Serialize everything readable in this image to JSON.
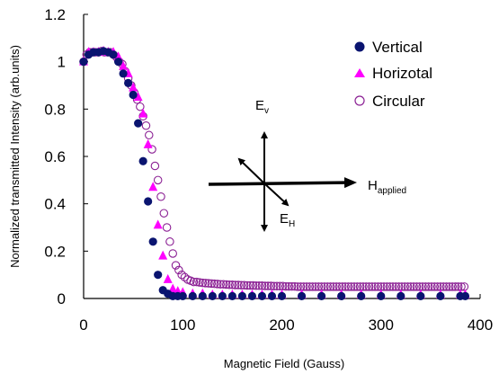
{
  "chart_data": {
    "type": "scatter",
    "title": "",
    "xlabel": "Magnetic Field (Gauss)",
    "ylabel": "Normalized transmitted Intensity (arb.units)",
    "xlim": [
      0,
      400
    ],
    "ylim": [
      0,
      1.2
    ],
    "x_ticks": [
      "0",
      "100",
      "200",
      "300",
      "400"
    ],
    "y_ticks": [
      "0",
      "0.2",
      "0.4",
      "0.6",
      "0.8",
      "1",
      "1.2"
    ],
    "x_tick_values": [
      0,
      100,
      200,
      300,
      400
    ],
    "y_tick_values": [
      0,
      0.2,
      0.4,
      0.6,
      0.8,
      1.0,
      1.2
    ],
    "grid": false,
    "legend_position": "top-right",
    "series": [
      {
        "name": "Vertical",
        "marker": "filled-circle",
        "color": "#0a1470",
        "x": [
          0,
          5,
          10,
          15,
          20,
          25,
          30,
          35,
          40,
          45,
          50,
          55,
          60,
          65,
          70,
          75,
          80,
          85,
          90,
          95,
          100,
          110,
          120,
          130,
          140,
          150,
          160,
          170,
          180,
          190,
          200,
          220,
          240,
          260,
          280,
          300,
          320,
          340,
          360,
          380,
          385
        ],
        "y": [
          1.0,
          1.03,
          1.04,
          1.04,
          1.045,
          1.04,
          1.03,
          1.0,
          0.95,
          0.91,
          0.86,
          0.74,
          0.58,
          0.41,
          0.24,
          0.1,
          0.035,
          0.02,
          0.01,
          0.01,
          0.01,
          0.01,
          0.01,
          0.01,
          0.01,
          0.01,
          0.01,
          0.01,
          0.01,
          0.01,
          0.01,
          0.01,
          0.01,
          0.01,
          0.01,
          0.01,
          0.01,
          0.01,
          0.01,
          0.01,
          0.01
        ]
      },
      {
        "name": "Horizotal",
        "marker": "filled-triangle",
        "color": "#ff00ff",
        "x": [
          0,
          5,
          10,
          15,
          20,
          25,
          30,
          35,
          40,
          45,
          50,
          55,
          60,
          65,
          70,
          75,
          80,
          85,
          90,
          95,
          100,
          110,
          120,
          130,
          140,
          150,
          160,
          170,
          180,
          190,
          200,
          220,
          240,
          260,
          280,
          300,
          320,
          340,
          360,
          380,
          385
        ],
        "y": [
          1.0,
          1.04,
          1.04,
          1.04,
          1.045,
          1.04,
          1.04,
          1.02,
          0.98,
          0.95,
          0.89,
          0.85,
          0.78,
          0.65,
          0.47,
          0.31,
          0.18,
          0.08,
          0.04,
          0.03,
          0.025,
          0.02,
          0.02,
          0.015,
          0.015,
          0.015,
          0.015,
          0.015,
          0.015,
          0.015,
          0.015,
          0.015,
          0.015,
          0.015,
          0.015,
          0.015,
          0.015,
          0.015,
          0.015,
          0.015,
          0.015
        ]
      },
      {
        "name": "Circular",
        "marker": "open-circle",
        "color": "#8b2094",
        "x": [
          0,
          3,
          6,
          9,
          12,
          15,
          18,
          21,
          24,
          27,
          30,
          33,
          36,
          39,
          42,
          45,
          48,
          51,
          54,
          57,
          60,
          63,
          66,
          69,
          72,
          75,
          78,
          81,
          84,
          87,
          90,
          93,
          96,
          99,
          102,
          105,
          108,
          111,
          114,
          117,
          120,
          123,
          126,
          129,
          132,
          135,
          138,
          141,
          144,
          147,
          150,
          153,
          156,
          159,
          162,
          165,
          168,
          171,
          174,
          177,
          180,
          183,
          186,
          189,
          192,
          195,
          198,
          201,
          204,
          207,
          210,
          213,
          216,
          219,
          222,
          225,
          228,
          231,
          234,
          237,
          240,
          243,
          246,
          249,
          252,
          255,
          258,
          261,
          264,
          267,
          270,
          273,
          276,
          279,
          282,
          285,
          288,
          291,
          294,
          297,
          300,
          303,
          306,
          309,
          312,
          315,
          318,
          321,
          324,
          327,
          330,
          333,
          336,
          339,
          342,
          345,
          348,
          351,
          354,
          357,
          360,
          363,
          366,
          369,
          372,
          375,
          378,
          381,
          384
        ],
        "y": [
          1.0,
          1.03,
          1.04,
          1.04,
          1.04,
          1.04,
          1.045,
          1.04,
          1.04,
          1.04,
          1.03,
          1.02,
          1.0,
          0.99,
          0.96,
          0.93,
          0.9,
          0.87,
          0.84,
          0.81,
          0.77,
          0.73,
          0.69,
          0.63,
          0.56,
          0.5,
          0.43,
          0.36,
          0.3,
          0.24,
          0.19,
          0.14,
          0.12,
          0.1,
          0.09,
          0.08,
          0.075,
          0.07,
          0.07,
          0.068,
          0.066,
          0.065,
          0.064,
          0.063,
          0.062,
          0.061,
          0.06,
          0.06,
          0.059,
          0.058,
          0.058,
          0.057,
          0.057,
          0.056,
          0.056,
          0.055,
          0.055,
          0.055,
          0.054,
          0.054,
          0.054,
          0.053,
          0.053,
          0.053,
          0.052,
          0.052,
          0.052,
          0.052,
          0.051,
          0.051,
          0.051,
          0.051,
          0.05,
          0.05,
          0.05,
          0.05,
          0.05,
          0.05,
          0.05,
          0.05,
          0.05,
          0.05,
          0.05,
          0.05,
          0.05,
          0.05,
          0.05,
          0.05,
          0.05,
          0.05,
          0.05,
          0.05,
          0.05,
          0.05,
          0.05,
          0.05,
          0.05,
          0.05,
          0.05,
          0.05,
          0.05,
          0.05,
          0.05,
          0.05,
          0.05,
          0.05,
          0.05,
          0.05,
          0.05,
          0.05,
          0.05,
          0.05,
          0.05,
          0.05,
          0.05,
          0.05,
          0.05,
          0.05,
          0.05,
          0.05,
          0.05,
          0.05,
          0.05,
          0.05,
          0.05,
          0.05,
          0.05,
          0.05,
          0.05
        ]
      }
    ],
    "annotations": {
      "ev_main": "E",
      "ev_sub": "v",
      "eh_main": "E",
      "eh_sub": "H",
      "h_main": "H",
      "h_sub": "applied"
    }
  }
}
